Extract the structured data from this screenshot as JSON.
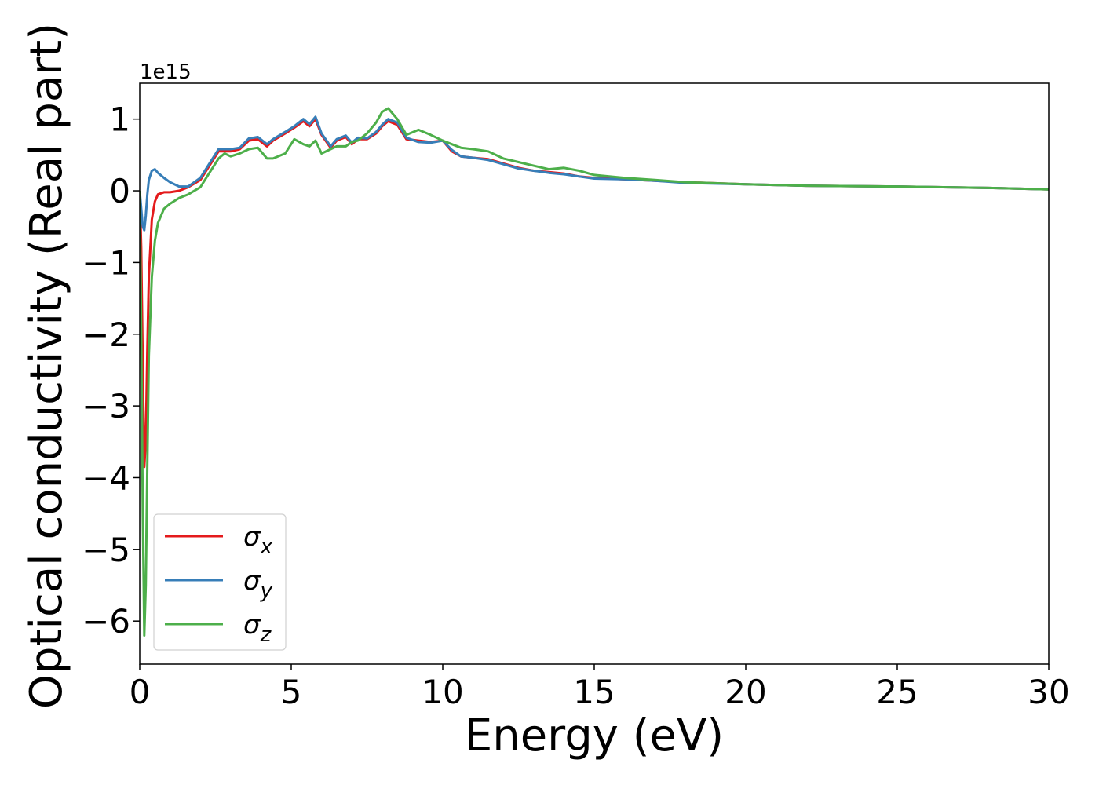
{
  "chart_data": {
    "type": "line",
    "title": "",
    "xlabel": "Energy (eV)",
    "ylabel": "Optical conductivity (Real part)",
    "y_offset_label": "1e15",
    "xlim": [
      0,
      30
    ],
    "ylim": [
      -6.6,
      1.5
    ],
    "y_scale_factor": 1000000000000000.0,
    "xticks": [
      0,
      5,
      10,
      15,
      20,
      25,
      30
    ],
    "yticks": [
      -6,
      -5,
      -4,
      -3,
      -2,
      -1,
      0,
      1
    ],
    "xtick_labels": [
      "0",
      "5",
      "10",
      "15",
      "20",
      "25",
      "30"
    ],
    "ytick_labels": [
      "−6",
      "−5",
      "−4",
      "−3",
      "−2",
      "−1",
      "0",
      "1"
    ],
    "grid": false,
    "legend_position": "lower-left",
    "series": [
      {
        "name": "σx",
        "name_base": "σ",
        "name_sub": "x",
        "color": "#e41a1c",
        "x": [
          0,
          0.05,
          0.1,
          0.15,
          0.2,
          0.25,
          0.3,
          0.4,
          0.5,
          0.6,
          0.8,
          1.0,
          1.3,
          1.6,
          2.0,
          2.3,
          2.6,
          3.0,
          3.3,
          3.6,
          3.9,
          4.2,
          4.4,
          4.8,
          5.1,
          5.4,
          5.6,
          5.8,
          6.0,
          6.3,
          6.5,
          6.8,
          7.0,
          7.2,
          7.5,
          7.8,
          8.0,
          8.2,
          8.5,
          8.8,
          9.2,
          9.6,
          10.0,
          10.3,
          10.6,
          11.0,
          11.5,
          12.0,
          12.5,
          13.0,
          13.5,
          14.0,
          14.5,
          15.0,
          16.0,
          17.0,
          18.0,
          20.0,
          22.0,
          25.0,
          28.0,
          30.0
        ],
        "y": [
          0.0,
          -0.8,
          -2.5,
          -3.85,
          -3.5,
          -2.2,
          -1.2,
          -0.4,
          -0.15,
          -0.05,
          -0.02,
          -0.02,
          0.0,
          0.05,
          0.15,
          0.35,
          0.55,
          0.55,
          0.58,
          0.7,
          0.72,
          0.62,
          0.7,
          0.8,
          0.88,
          0.97,
          0.9,
          1.0,
          0.78,
          0.6,
          0.7,
          0.75,
          0.65,
          0.72,
          0.72,
          0.8,
          0.9,
          0.97,
          0.92,
          0.72,
          0.7,
          0.68,
          0.7,
          0.55,
          0.48,
          0.46,
          0.44,
          0.38,
          0.32,
          0.28,
          0.26,
          0.24,
          0.2,
          0.18,
          0.16,
          0.14,
          0.12,
          0.09,
          0.07,
          0.06,
          0.04,
          0.02
        ]
      },
      {
        "name": "σy",
        "name_base": "σ",
        "name_sub": "y",
        "color": "#377eb8",
        "x": [
          0,
          0.05,
          0.1,
          0.15,
          0.2,
          0.25,
          0.3,
          0.4,
          0.5,
          0.6,
          0.8,
          1.0,
          1.3,
          1.6,
          2.0,
          2.3,
          2.6,
          3.0,
          3.3,
          3.6,
          3.9,
          4.2,
          4.4,
          4.8,
          5.1,
          5.4,
          5.6,
          5.8,
          6.0,
          6.3,
          6.5,
          6.8,
          7.0,
          7.2,
          7.5,
          7.8,
          8.0,
          8.2,
          8.5,
          8.8,
          9.2,
          9.6,
          10.0,
          10.3,
          10.6,
          11.0,
          11.5,
          12.0,
          12.5,
          13.0,
          13.5,
          14.0,
          14.5,
          15.0,
          16.0,
          17.0,
          18.0,
          20.0,
          22.0,
          25.0,
          28.0,
          30.0
        ],
        "y": [
          0.0,
          -0.25,
          -0.5,
          -0.55,
          -0.35,
          -0.05,
          0.15,
          0.28,
          0.3,
          0.25,
          0.18,
          0.12,
          0.06,
          0.06,
          0.18,
          0.38,
          0.58,
          0.58,
          0.6,
          0.73,
          0.75,
          0.65,
          0.72,
          0.82,
          0.9,
          1.0,
          0.93,
          1.03,
          0.8,
          0.62,
          0.72,
          0.77,
          0.67,
          0.74,
          0.73,
          0.82,
          0.92,
          1.0,
          0.95,
          0.74,
          0.68,
          0.67,
          0.7,
          0.57,
          0.48,
          0.46,
          0.43,
          0.37,
          0.31,
          0.28,
          0.25,
          0.23,
          0.2,
          0.17,
          0.16,
          0.14,
          0.11,
          0.09,
          0.07,
          0.06,
          0.04,
          0.02
        ]
      },
      {
        "name": "σz",
        "name_base": "σ",
        "name_sub": "z",
        "color": "#4daf4a",
        "x": [
          0,
          0.05,
          0.1,
          0.15,
          0.2,
          0.25,
          0.3,
          0.4,
          0.5,
          0.6,
          0.8,
          1.0,
          1.3,
          1.6,
          2.0,
          2.3,
          2.6,
          2.8,
          3.0,
          3.3,
          3.6,
          3.9,
          4.2,
          4.4,
          4.8,
          5.1,
          5.4,
          5.6,
          5.8,
          6.0,
          6.3,
          6.5,
          6.8,
          7.0,
          7.2,
          7.5,
          7.8,
          8.0,
          8.2,
          8.5,
          8.8,
          9.2,
          9.6,
          10.0,
          10.3,
          10.6,
          11.0,
          11.5,
          12.0,
          12.5,
          13.0,
          13.5,
          14.0,
          14.5,
          15.0,
          16.0,
          17.0,
          18.0,
          20.0,
          22.0,
          25.0,
          28.0,
          30.0
        ],
        "y": [
          0.0,
          -2.0,
          -4.5,
          -6.2,
          -5.5,
          -3.8,
          -2.3,
          -1.2,
          -0.7,
          -0.45,
          -0.25,
          -0.18,
          -0.1,
          -0.05,
          0.05,
          0.25,
          0.45,
          0.52,
          0.48,
          0.52,
          0.58,
          0.6,
          0.45,
          0.45,
          0.52,
          0.72,
          0.65,
          0.62,
          0.7,
          0.52,
          0.58,
          0.62,
          0.62,
          0.68,
          0.7,
          0.8,
          0.95,
          1.1,
          1.15,
          1.0,
          0.78,
          0.85,
          0.78,
          0.7,
          0.65,
          0.6,
          0.58,
          0.55,
          0.45,
          0.4,
          0.35,
          0.3,
          0.32,
          0.28,
          0.22,
          0.18,
          0.15,
          0.12,
          0.09,
          0.07,
          0.06,
          0.04,
          0.02
        ]
      }
    ]
  }
}
